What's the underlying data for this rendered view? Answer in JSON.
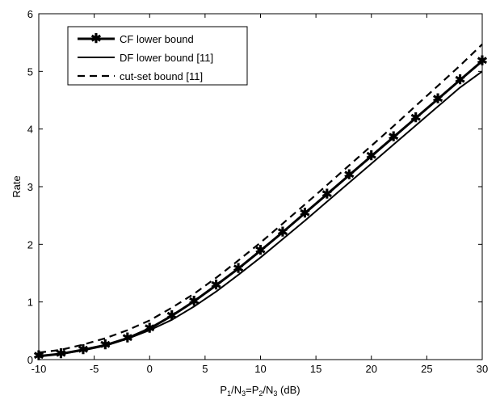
{
  "chart_data": {
    "type": "line",
    "xlabel": "P1/N3=P2/N3 (dB)",
    "xlabel_parts": {
      "p1": "P",
      "sub1": "1",
      "n1": "/N",
      "sub2": "3",
      "eq": "=P",
      "sub3": "2",
      "n2": "/N",
      "sub4": "3",
      "unit": " (dB)"
    },
    "ylabel": "Rate",
    "xlim": [
      -10,
      30
    ],
    "ylim": [
      0,
      6
    ],
    "xticks": [
      -10,
      -5,
      0,
      5,
      10,
      15,
      20,
      25,
      30
    ],
    "yticks": [
      0,
      1,
      2,
      3,
      4,
      5,
      6
    ],
    "grid": false,
    "legend_position": "top-left",
    "series": [
      {
        "name": "CF lower bound",
        "style": "solid-thick-asterisk",
        "color": "#000000",
        "x": [
          -10,
          -8,
          -6,
          -4,
          -2,
          0,
          2,
          4,
          6,
          8,
          10,
          12,
          14,
          16,
          18,
          20,
          22,
          24,
          26,
          28,
          30
        ],
        "y": [
          0.06,
          0.1,
          0.17,
          0.25,
          0.37,
          0.54,
          0.76,
          1.01,
          1.29,
          1.58,
          1.89,
          2.21,
          2.54,
          2.87,
          3.2,
          3.53,
          3.86,
          4.19,
          4.52,
          4.85,
          5.18
        ]
      },
      {
        "name": "DF lower bound [11]",
        "style": "solid",
        "color": "#000000",
        "x": [
          -10,
          -8,
          -6,
          -4,
          -2,
          0,
          2,
          4,
          6,
          8,
          10,
          12,
          14,
          16,
          18,
          20,
          22,
          24,
          26,
          28,
          30
        ],
        "y": [
          0.06,
          0.1,
          0.16,
          0.24,
          0.36,
          0.51,
          0.69,
          0.92,
          1.18,
          1.47,
          1.77,
          2.09,
          2.41,
          2.74,
          3.07,
          3.4,
          3.73,
          4.06,
          4.39,
          4.72,
          5.0
        ]
      },
      {
        "name": "cut-set bound [11]",
        "style": "dashed",
        "color": "#000000",
        "x": [
          -10,
          -8,
          -6,
          -4,
          -2,
          0,
          2,
          4,
          6,
          8,
          10,
          12,
          14,
          16,
          18,
          20,
          22,
          24,
          26,
          28,
          30
        ],
        "y": [
          0.12,
          0.17,
          0.26,
          0.37,
          0.51,
          0.68,
          0.9,
          1.14,
          1.42,
          1.72,
          2.03,
          2.36,
          2.69,
          3.03,
          3.37,
          3.71,
          4.05,
          4.4,
          4.75,
          5.1,
          5.47
        ]
      }
    ]
  }
}
